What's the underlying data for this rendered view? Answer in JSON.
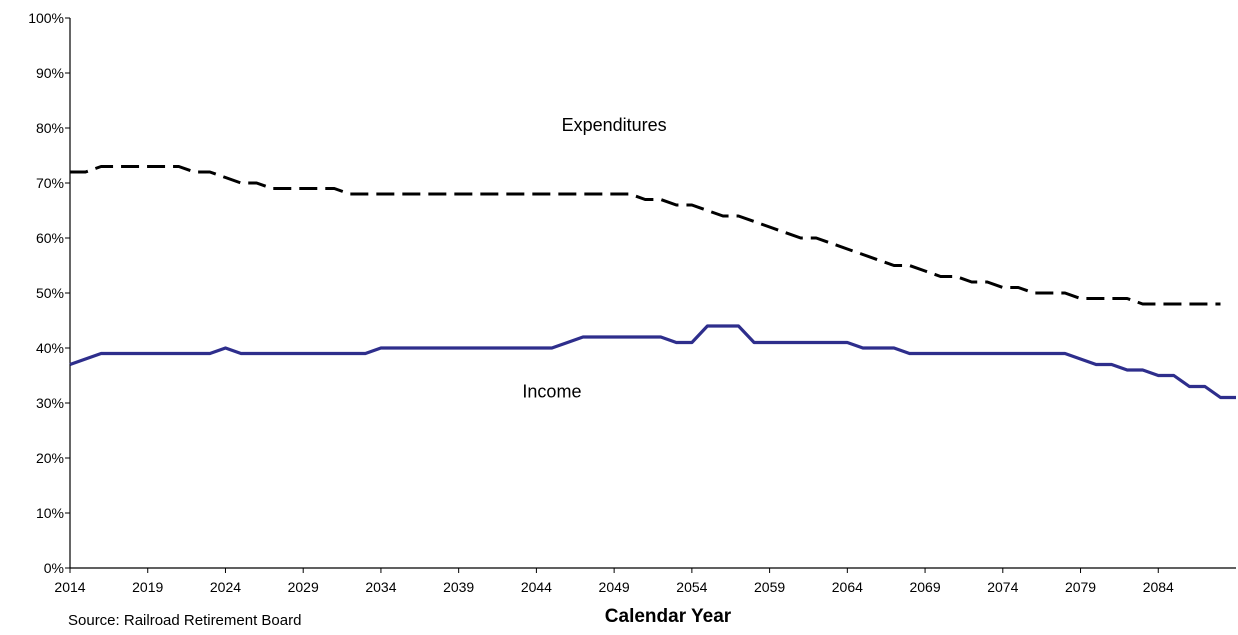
{
  "chart_data": {
    "type": "line",
    "xlabel": "Calendar Year",
    "ylabel": "",
    "xlim": [
      2014,
      2089
    ],
    "ylim": [
      0,
      100
    ],
    "x_ticks": [
      2014,
      2019,
      2024,
      2029,
      2034,
      2039,
      2044,
      2049,
      2054,
      2059,
      2064,
      2069,
      2074,
      2079,
      2084
    ],
    "y_ticks": [
      0,
      10,
      20,
      30,
      40,
      50,
      60,
      70,
      80,
      90,
      100
    ],
    "y_tick_labels": [
      "0%",
      "10%",
      "20%",
      "30%",
      "40%",
      "50%",
      "60%",
      "70%",
      "80%",
      "90%",
      "100%"
    ],
    "grid": false,
    "legend": "none",
    "series": [
      {
        "name": "Expenditures",
        "style": "dashed",
        "color": "#000000",
        "x": [
          2014,
          2015,
          2016,
          2017,
          2018,
          2019,
          2020,
          2021,
          2022,
          2023,
          2024,
          2025,
          2026,
          2027,
          2028,
          2029,
          2030,
          2031,
          2032,
          2033,
          2034,
          2035,
          2036,
          2037,
          2038,
          2039,
          2040,
          2041,
          2042,
          2043,
          2044,
          2045,
          2046,
          2047,
          2048,
          2049,
          2050,
          2051,
          2052,
          2053,
          2054,
          2055,
          2056,
          2057,
          2058,
          2059,
          2060,
          2061,
          2062,
          2063,
          2064,
          2065,
          2066,
          2067,
          2068,
          2069,
          2070,
          2071,
          2072,
          2073,
          2074,
          2075,
          2076,
          2077,
          2078,
          2079,
          2080,
          2081,
          2082,
          2083,
          2084,
          2085,
          2086,
          2087,
          2088
        ],
        "values": [
          72,
          72,
          73,
          73,
          73,
          73,
          73,
          73,
          72,
          72,
          71,
          70,
          70,
          69,
          69,
          69,
          69,
          69,
          68,
          68,
          68,
          68,
          68,
          68,
          68,
          68,
          68,
          68,
          68,
          68,
          68,
          68,
          68,
          68,
          68,
          68,
          68,
          67,
          67,
          66,
          66,
          65,
          64,
          64,
          63,
          62,
          61,
          60,
          60,
          59,
          58,
          57,
          56,
          55,
          55,
          54,
          53,
          53,
          52,
          52,
          51,
          51,
          50,
          50,
          50,
          49,
          49,
          49,
          49,
          48,
          48,
          48,
          48,
          48,
          48
        ]
      },
      {
        "name": "Income",
        "style": "solid",
        "color": "#2e2e8c",
        "x": [
          2014,
          2015,
          2016,
          2017,
          2018,
          2019,
          2020,
          2021,
          2022,
          2023,
          2024,
          2025,
          2026,
          2027,
          2028,
          2029,
          2030,
          2031,
          2032,
          2033,
          2034,
          2035,
          2036,
          2037,
          2038,
          2039,
          2040,
          2041,
          2042,
          2043,
          2044,
          2045,
          2046,
          2047,
          2048,
          2049,
          2050,
          2051,
          2052,
          2053,
          2054,
          2055,
          2056,
          2057,
          2058,
          2059,
          2060,
          2061,
          2062,
          2063,
          2064,
          2065,
          2066,
          2067,
          2068,
          2069,
          2070,
          2071,
          2072,
          2073,
          2074,
          2075,
          2076,
          2077,
          2078,
          2079,
          2080,
          2081,
          2082,
          2083,
          2084,
          2085,
          2086,
          2087,
          2088,
          2089
        ],
        "values": [
          37,
          38,
          39,
          39,
          39,
          39,
          39,
          39,
          39,
          39,
          40,
          39,
          39,
          39,
          39,
          39,
          39,
          39,
          39,
          39,
          40,
          40,
          40,
          40,
          40,
          40,
          40,
          40,
          40,
          40,
          40,
          40,
          41,
          42,
          42,
          42,
          42,
          42,
          42,
          41,
          41,
          44,
          44,
          44,
          41,
          41,
          41,
          41,
          41,
          41,
          41,
          40,
          40,
          40,
          39,
          39,
          39,
          39,
          39,
          39,
          39,
          39,
          39,
          39,
          39,
          38,
          37,
          37,
          36,
          36,
          35,
          35,
          33,
          33,
          31,
          31
        ]
      }
    ],
    "annotations": [
      {
        "text": "Expenditures",
        "x": 2049,
        "y": 79.5
      },
      {
        "text": "Income",
        "x": 2045,
        "y": 31
      }
    ],
    "source": "Source:  Railroad Retirement Board"
  }
}
